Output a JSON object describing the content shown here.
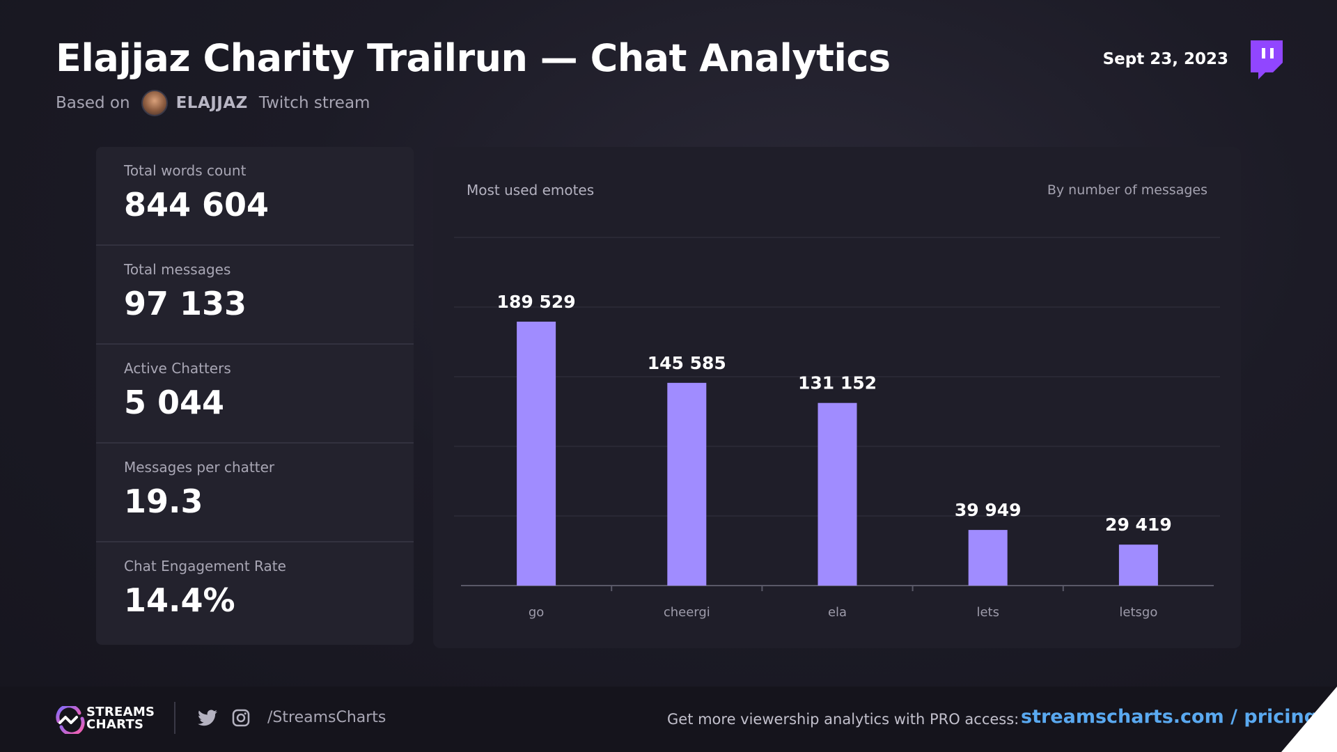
{
  "header": {
    "title": "Elajjaz Charity Trailrun — Chat Analytics",
    "based_on": "Based on",
    "channel": "ELAJJAZ",
    "platform": "Twitch stream",
    "date": "Sept 23, 2023"
  },
  "stats": [
    {
      "label": "Total words count",
      "value": "844 604"
    },
    {
      "label": "Total messages",
      "value": "97 133"
    },
    {
      "label": "Active Chatters",
      "value": "5 044"
    },
    {
      "label": "Messages per chatter",
      "value": "19.3"
    },
    {
      "label": "Chat Engagement Rate",
      "value": "14.4%"
    }
  ],
  "chart_data": {
    "type": "bar",
    "title": "Most used emotes",
    "note": "By number of messages",
    "categories": [
      "go",
      "cheergi",
      "ela",
      "lets",
      "letsgo"
    ],
    "values": [
      189529,
      145585,
      131152,
      39949,
      29419
    ],
    "value_labels": [
      "189 529",
      "145 585",
      "131 152",
      "39 949",
      "29 419"
    ],
    "xlabel": "",
    "ylabel": "",
    "ylim": [
      0,
      250000
    ],
    "grid": true,
    "bar_color": "#a08cff"
  },
  "footer": {
    "brand_line1": "STREAMS",
    "brand_line2": "CHARTS",
    "handle": "/StreamsCharts",
    "promo": "Get more viewership analytics with PRO access:",
    "link": "streamscharts.com / pricing"
  },
  "colors": {
    "accent_purple": "#9146ff",
    "bar": "#a08cff",
    "link": "#5aa9f0"
  },
  "icons": [
    "twitch-logo-icon",
    "twitter-icon",
    "instagram-icon",
    "streamscharts-logo-icon"
  ]
}
